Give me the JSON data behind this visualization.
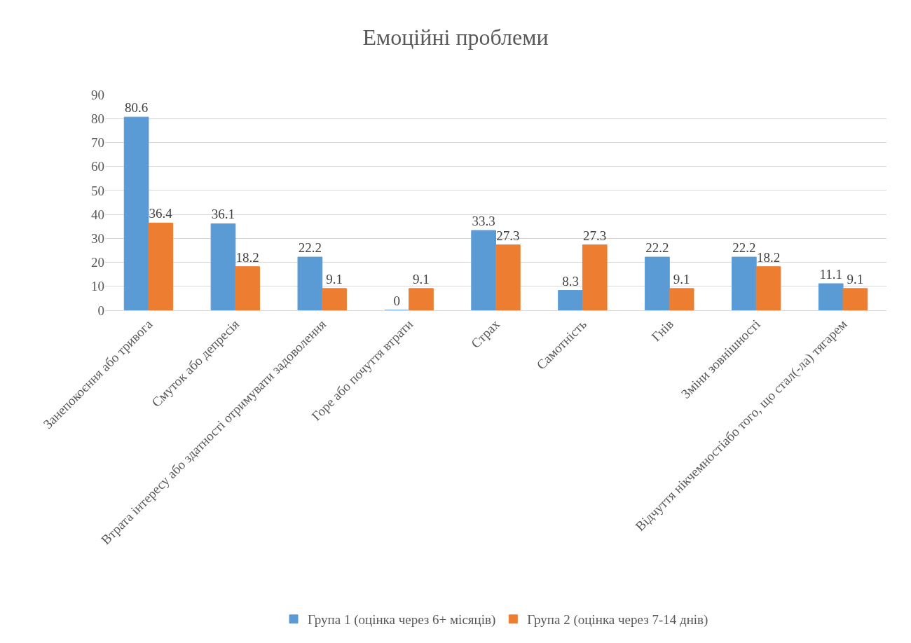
{
  "chart_data": {
    "type": "bar",
    "title": "Емоційні проблеми",
    "categories": [
      "Занепокоєння або тривога",
      "Смуток або депресія",
      "Втрата інтересу або здатності отримувати задоволення",
      "Горе або почуття втрати",
      "Страх",
      "Самотність",
      "Гнів",
      "Зміни зовнішності",
      "Відчуття нікчемностіабо того, що стал(-ла) тягарем"
    ],
    "series": [
      {
        "name": "Група 1 (оцінка через 6+ місяців)",
        "color": "#5b9bd5",
        "values": [
          80.6,
          36.1,
          22.2,
          0,
          33.3,
          8.3,
          22.2,
          22.2,
          11.1
        ]
      },
      {
        "name": "Група 2 (оцінка через 7-14 днів)",
        "color": "#ed7d31",
        "values": [
          36.4,
          18.2,
          9.1,
          9.1,
          27.3,
          27.3,
          9.1,
          18.2,
          9.1
        ]
      }
    ],
    "ylim": [
      0,
      90
    ],
    "yticks": [
      0,
      10,
      20,
      30,
      40,
      50,
      60,
      70,
      80,
      90
    ],
    "grid": "y",
    "legend": "bottom",
    "data_labels": true
  }
}
